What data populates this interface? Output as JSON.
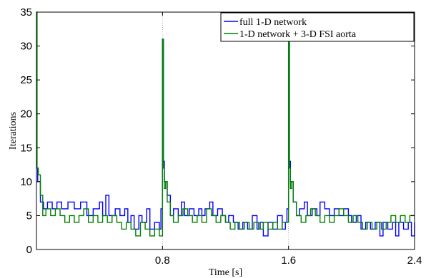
{
  "chart_data": {
    "type": "line",
    "xlabel": "Time [s]",
    "ylabel": "Iterations",
    "xlim": [
      0,
      2.4
    ],
    "ylim": [
      0,
      35
    ],
    "xticks": [
      0.8,
      1.6,
      2.4
    ],
    "xtick_labels": [
      "0.8",
      "1.6",
      "2.4"
    ],
    "yticks": [
      0,
      5,
      10,
      15,
      20,
      25,
      30,
      35
    ],
    "ytick_labels": [
      "0",
      "5",
      "10",
      "15",
      "20",
      "25",
      "30",
      "35"
    ],
    "grid": "dotted vertical at x ticks",
    "legend": {
      "placement": "top-right",
      "entries": [
        "full 1-D network",
        "1-D network + 3-D FSI aorta"
      ]
    },
    "series": [
      {
        "name": "full 1-D network",
        "color": "#0000ff",
        "points": [
          [
            0.0,
            12
          ],
          [
            0.008,
            10
          ],
          [
            0.025,
            7
          ],
          [
            0.045,
            6
          ],
          [
            0.07,
            7
          ],
          [
            0.1,
            6
          ],
          [
            0.13,
            7
          ],
          [
            0.16,
            6
          ],
          [
            0.2,
            7
          ],
          [
            0.24,
            6
          ],
          [
            0.28,
            7
          ],
          [
            0.32,
            5
          ],
          [
            0.36,
            6
          ],
          [
            0.4,
            7
          ],
          [
            0.42,
            5
          ],
          [
            0.44,
            8
          ],
          [
            0.46,
            5
          ],
          [
            0.5,
            6
          ],
          [
            0.53,
            5
          ],
          [
            0.56,
            6
          ],
          [
            0.58,
            4
          ],
          [
            0.6,
            5
          ],
          [
            0.62,
            3
          ],
          [
            0.65,
            5
          ],
          [
            0.67,
            4
          ],
          [
            0.7,
            6
          ],
          [
            0.72,
            3
          ],
          [
            0.75,
            4
          ],
          [
            0.78,
            3
          ],
          [
            0.79,
            6
          ],
          [
            0.8,
            31
          ],
          [
            0.806,
            13
          ],
          [
            0.812,
            10
          ],
          [
            0.83,
            8
          ],
          [
            0.85,
            5
          ],
          [
            0.87,
            6
          ],
          [
            0.9,
            5
          ],
          [
            0.92,
            7
          ],
          [
            0.94,
            5
          ],
          [
            0.97,
            6
          ],
          [
            1.0,
            5
          ],
          [
            1.03,
            6
          ],
          [
            1.05,
            5
          ],
          [
            1.07,
            6
          ],
          [
            1.1,
            7
          ],
          [
            1.12,
            5
          ],
          [
            1.15,
            6
          ],
          [
            1.18,
            5
          ],
          [
            1.2,
            4
          ],
          [
            1.22,
            5
          ],
          [
            1.25,
            4
          ],
          [
            1.28,
            3
          ],
          [
            1.31,
            4
          ],
          [
            1.34,
            3
          ],
          [
            1.37,
            5
          ],
          [
            1.4,
            3
          ],
          [
            1.42,
            4
          ],
          [
            1.44,
            2
          ],
          [
            1.47,
            4
          ],
          [
            1.5,
            3
          ],
          [
            1.53,
            5
          ],
          [
            1.56,
            3
          ],
          [
            1.58,
            4
          ],
          [
            1.59,
            6
          ],
          [
            1.6,
            31
          ],
          [
            1.606,
            13
          ],
          [
            1.612,
            10
          ],
          [
            1.63,
            7
          ],
          [
            1.65,
            5
          ],
          [
            1.67,
            6
          ],
          [
            1.7,
            7
          ],
          [
            1.72,
            5
          ],
          [
            1.75,
            6
          ],
          [
            1.78,
            5
          ],
          [
            1.8,
            7
          ],
          [
            1.83,
            6
          ],
          [
            1.86,
            5
          ],
          [
            1.89,
            6
          ],
          [
            1.92,
            5
          ],
          [
            1.95,
            6
          ],
          [
            1.98,
            5
          ],
          [
            2.0,
            4
          ],
          [
            2.03,
            5
          ],
          [
            2.06,
            3
          ],
          [
            2.09,
            4
          ],
          [
            2.12,
            3
          ],
          [
            2.15,
            4
          ],
          [
            2.18,
            2
          ],
          [
            2.2,
            4
          ],
          [
            2.23,
            3
          ],
          [
            2.26,
            4
          ],
          [
            2.28,
            2
          ],
          [
            2.3,
            4
          ],
          [
            2.33,
            3
          ],
          [
            2.36,
            4
          ],
          [
            2.38,
            2
          ],
          [
            2.4,
            4
          ]
        ]
      },
      {
        "name": "1-D network + 3-D FSI aorta",
        "color": "#008000",
        "points": [
          [
            0.0,
            35
          ],
          [
            0.004,
            12
          ],
          [
            0.012,
            11
          ],
          [
            0.025,
            8
          ],
          [
            0.04,
            5
          ],
          [
            0.06,
            6
          ],
          [
            0.09,
            5
          ],
          [
            0.12,
            6
          ],
          [
            0.15,
            5
          ],
          [
            0.18,
            4
          ],
          [
            0.21,
            5
          ],
          [
            0.24,
            4
          ],
          [
            0.27,
            5
          ],
          [
            0.3,
            6
          ],
          [
            0.33,
            4
          ],
          [
            0.36,
            5
          ],
          [
            0.39,
            4
          ],
          [
            0.42,
            5
          ],
          [
            0.45,
            4
          ],
          [
            0.48,
            5
          ],
          [
            0.51,
            4
          ],
          [
            0.54,
            3
          ],
          [
            0.57,
            4
          ],
          [
            0.6,
            3
          ],
          [
            0.63,
            2
          ],
          [
            0.66,
            4
          ],
          [
            0.69,
            3
          ],
          [
            0.72,
            2
          ],
          [
            0.75,
            3
          ],
          [
            0.78,
            2
          ],
          [
            0.8,
            31
          ],
          [
            0.805,
            12
          ],
          [
            0.812,
            9
          ],
          [
            0.82,
            10
          ],
          [
            0.83,
            7
          ],
          [
            0.85,
            5
          ],
          [
            0.87,
            4
          ],
          [
            0.9,
            5
          ],
          [
            0.93,
            6
          ],
          [
            0.96,
            5
          ],
          [
            0.99,
            4
          ],
          [
            1.02,
            5
          ],
          [
            1.05,
            4
          ],
          [
            1.08,
            6
          ],
          [
            1.11,
            5
          ],
          [
            1.14,
            4
          ],
          [
            1.17,
            5
          ],
          [
            1.2,
            4
          ],
          [
            1.23,
            3
          ],
          [
            1.26,
            4
          ],
          [
            1.29,
            3
          ],
          [
            1.32,
            4
          ],
          [
            1.35,
            3
          ],
          [
            1.38,
            4
          ],
          [
            1.41,
            3
          ],
          [
            1.44,
            4
          ],
          [
            1.47,
            3
          ],
          [
            1.5,
            4
          ],
          [
            1.53,
            3
          ],
          [
            1.56,
            4
          ],
          [
            1.6,
            31
          ],
          [
            1.605,
            12
          ],
          [
            1.612,
            9
          ],
          [
            1.62,
            10
          ],
          [
            1.63,
            7
          ],
          [
            1.65,
            5
          ],
          [
            1.68,
            4
          ],
          [
            1.71,
            5
          ],
          [
            1.74,
            6
          ],
          [
            1.77,
            5
          ],
          [
            1.8,
            4
          ],
          [
            1.83,
            5
          ],
          [
            1.86,
            4
          ],
          [
            1.89,
            5
          ],
          [
            1.92,
            6
          ],
          [
            1.95,
            5
          ],
          [
            1.98,
            4
          ],
          [
            2.01,
            5
          ],
          [
            2.04,
            4
          ],
          [
            2.07,
            3
          ],
          [
            2.1,
            4
          ],
          [
            2.13,
            3
          ],
          [
            2.16,
            4
          ],
          [
            2.19,
            3
          ],
          [
            2.22,
            4
          ],
          [
            2.25,
            5
          ],
          [
            2.28,
            4
          ],
          [
            2.31,
            5
          ],
          [
            2.34,
            4
          ],
          [
            2.37,
            5
          ],
          [
            2.4,
            5
          ]
        ]
      }
    ]
  }
}
